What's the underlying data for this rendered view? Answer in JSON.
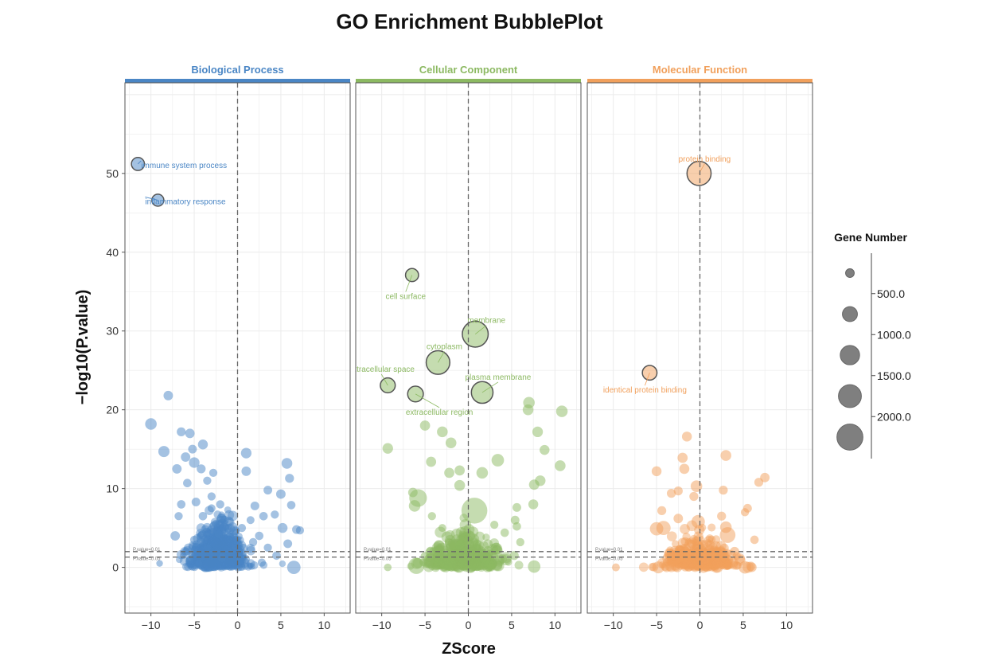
{
  "chart_data": {
    "type": "scatter",
    "title": "GO Enrichment BubblePlot",
    "xlabel": "ZScore",
    "ylabel": "−log10(P.value)",
    "xlim": [
      -13,
      13
    ],
    "ylim": [
      -5.8,
      61.5
    ],
    "x_ticks": [
      -10,
      -5,
      0,
      5,
      10
    ],
    "x_tick_labels": [
      "−10",
      "−5",
      "0",
      "5",
      "10"
    ],
    "y_ticks": [
      0,
      10,
      20,
      30,
      40,
      50
    ],
    "y_tick_labels": [
      "0",
      "10",
      "20",
      "30",
      "40",
      "50"
    ],
    "grid": true,
    "thresholds": {
      "lines": [
        1.3,
        2.0
      ],
      "labels": [
        "P.value=0.05",
        "P.value=0.01"
      ]
    },
    "zscore_zero_line": 0,
    "legend": {
      "title": "Gene Number",
      "position": "right",
      "labels": [
        "500.0",
        "1000.0",
        "1500.0",
        "2000.0"
      ],
      "size_values": [
        250,
        750,
        1250,
        1750,
        2250
      ]
    },
    "panels": [
      {
        "name": "Biological Process",
        "color": "#4a86c5",
        "annotated": [
          {
            "label": "immune system process",
            "x": -11.5,
            "y": 51.2,
            "size": 380
          },
          {
            "label": "inflammatory response",
            "x": -9.2,
            "y": 46.6,
            "size": 320
          }
        ],
        "points": [
          [
            -8,
            21.8,
            200
          ],
          [
            -10,
            18.2,
            300
          ],
          [
            -8.5,
            14.7,
            280
          ],
          [
            -6.5,
            17.2,
            180
          ],
          [
            -5.5,
            17.0,
            200
          ],
          [
            -4,
            15.6,
            220
          ],
          [
            -6,
            14.0,
            200
          ],
          [
            -5,
            13.3,
            250
          ],
          [
            -4.2,
            12.5,
            180
          ],
          [
            -7,
            12.5,
            200
          ],
          [
            -5.8,
            10.7,
            160
          ],
          [
            -3.5,
            11.0,
            150
          ],
          [
            -6.5,
            8.0,
            160
          ],
          [
            -4.8,
            8.3,
            170
          ],
          [
            -3,
            9.0,
            150
          ],
          [
            -2,
            8.0,
            150
          ],
          [
            -7.2,
            4.0,
            200
          ],
          [
            -9,
            0.5,
            100
          ],
          [
            -5.5,
            1.0,
            130
          ],
          [
            1,
            14.5,
            250
          ],
          [
            1,
            12.2,
            200
          ],
          [
            5.7,
            13.2,
            260
          ],
          [
            6,
            11.3,
            180
          ],
          [
            3.5,
            9.8,
            170
          ],
          [
            5,
            9.3,
            200
          ],
          [
            2,
            7.8,
            170
          ],
          [
            6.2,
            7.9,
            160
          ],
          [
            3,
            6.5,
            160
          ],
          [
            4.3,
            6.7,
            150
          ],
          [
            5.2,
            5.0,
            220
          ],
          [
            6.8,
            4.8,
            170
          ],
          [
            7.2,
            4.7,
            150
          ],
          [
            5.8,
            3.0,
            170
          ],
          [
            6.5,
            0.0,
            400
          ],
          [
            1.5,
            6.0,
            140
          ],
          [
            -1.5,
            6.0,
            160
          ],
          [
            0.5,
            5.0,
            150
          ],
          [
            2.5,
            4.0,
            160
          ],
          [
            -4,
            6.5,
            160
          ],
          [
            -3,
            7.5,
            140
          ],
          [
            -5,
            3.5,
            150
          ],
          [
            -2.5,
            5.5,
            150
          ],
          [
            3.5,
            2.5,
            150
          ],
          [
            4.5,
            1.5,
            160
          ],
          [
            -6,
            2.0,
            140
          ],
          [
            -3.5,
            2.5,
            140
          ],
          [
            -1.8,
            1.2,
            160
          ],
          [
            0.2,
            0.8,
            170
          ],
          [
            1.8,
            3.2,
            150
          ],
          [
            -4.5,
            0.5,
            150
          ],
          [
            2.8,
            0.6,
            150
          ],
          [
            -6.8,
            6.5,
            150
          ],
          [
            -5.2,
            15.0,
            170
          ],
          [
            -2.8,
            12.0,
            150
          ],
          [
            -2.2,
            4.2,
            150
          ]
        ],
        "cloud": {
          "seed": 11,
          "count": 620,
          "mean_x": -2.2,
          "sd_x": 1.6,
          "max_y": 9,
          "size_min": 90,
          "size_max": 240
        }
      },
      {
        "name": "Cellular Component",
        "color": "#8cb962",
        "annotated": [
          {
            "label": "cell surface",
            "x": -6.5,
            "y": 37.1,
            "size": 380
          },
          {
            "label": "membrane",
            "x": 0.8,
            "y": 29.6,
            "size": 1500
          },
          {
            "label": "cytoplasm",
            "x": -3.5,
            "y": 26.0,
            "size": 1250
          },
          {
            "label": "extracellular space",
            "x": -9.3,
            "y": 23.1,
            "size": 500
          },
          {
            "label": "plasma membrane",
            "x": 1.6,
            "y": 22.2,
            "size": 1050
          },
          {
            "label": "extracellular region",
            "x": -6.1,
            "y": 22.0,
            "size": 550
          }
        ],
        "points": [
          [
            7,
            20.9,
            300
          ],
          [
            10.8,
            19.8,
            300
          ],
          [
            6.9,
            20.0,
            260
          ],
          [
            8,
            17.2,
            250
          ],
          [
            -5,
            18.0,
            230
          ],
          [
            -3,
            17.2,
            260
          ],
          [
            -2,
            15.8,
            260
          ],
          [
            -9.3,
            15.1,
            250
          ],
          [
            8.8,
            14.9,
            220
          ],
          [
            3.4,
            13.6,
            350
          ],
          [
            -4.3,
            13.4,
            230
          ],
          [
            10.6,
            12.9,
            260
          ],
          [
            -2.2,
            12.0,
            230
          ],
          [
            1.6,
            12.0,
            300
          ],
          [
            -1,
            12.3,
            230
          ],
          [
            8.3,
            11.0,
            250
          ],
          [
            -6.4,
            9.5,
            200
          ],
          [
            -1,
            10.4,
            260
          ],
          [
            7.6,
            10.5,
            240
          ],
          [
            -6.2,
            7.8,
            300
          ],
          [
            -5.8,
            8.8,
            700
          ],
          [
            0.7,
            7.2,
            1500
          ],
          [
            7.5,
            8.0,
            220
          ],
          [
            5.6,
            7.6,
            170
          ],
          [
            5.4,
            6.0,
            170
          ],
          [
            5.6,
            5.2,
            160
          ],
          [
            -3,
            5.0,
            140
          ],
          [
            -4.2,
            6.5,
            150
          ],
          [
            3.2,
            2.5,
            220
          ],
          [
            -6,
            0.2,
            600
          ],
          [
            7.6,
            0.1,
            350
          ],
          [
            -9.3,
            0.0,
            130
          ],
          [
            2.5,
            0.3,
            220
          ],
          [
            -2.3,
            0.5,
            500
          ],
          [
            5.3,
            1.5,
            180
          ],
          [
            -4,
            2.0,
            180
          ],
          [
            1,
            3.0,
            170
          ],
          [
            -1,
            2.8,
            180
          ],
          [
            3,
            5.4,
            150
          ],
          [
            4.2,
            4.4,
            160
          ],
          [
            6,
            3.2,
            150
          ],
          [
            -5,
            1.4,
            170
          ],
          [
            0,
            1.5,
            180
          ],
          [
            2,
            1.0,
            190
          ],
          [
            -3.5,
            0.8,
            200
          ]
        ],
        "cloud": {
          "seed": 29,
          "count": 340,
          "mean_x": -0.6,
          "sd_x": 2.0,
          "max_y": 7,
          "size_min": 110,
          "size_max": 320
        }
      },
      {
        "name": "Molecular Function",
        "color": "#f1a05c",
        "annotated": [
          {
            "label": "protein binding",
            "x": -0.1,
            "y": 50.0,
            "size": 1300
          },
          {
            "label": "identical protein binding",
            "x": -5.8,
            "y": 24.7,
            "size": 480
          }
        ],
        "points": [
          [
            -1.5,
            16.6,
            220
          ],
          [
            3,
            14.2,
            260
          ],
          [
            -2,
            13.9,
            230
          ],
          [
            -1.8,
            12.5,
            230
          ],
          [
            -5,
            12.2,
            220
          ],
          [
            7.5,
            11.4,
            200
          ],
          [
            6.8,
            10.8,
            180
          ],
          [
            -0.4,
            10.3,
            300
          ],
          [
            -2.5,
            9.7,
            180
          ],
          [
            2.7,
            9.8,
            180
          ],
          [
            -3.3,
            9.4,
            180
          ],
          [
            -0.7,
            9.0,
            180
          ],
          [
            5.5,
            7.5,
            170
          ],
          [
            5.2,
            7.0,
            150
          ],
          [
            -4.4,
            7.2,
            180
          ],
          [
            -5,
            4.9,
            400
          ],
          [
            -4.2,
            5.0,
            450
          ],
          [
            -0.2,
            5.8,
            400
          ],
          [
            3.2,
            4.1,
            550
          ],
          [
            3,
            5.1,
            300
          ],
          [
            -9.7,
            0.0,
            140
          ],
          [
            -4.8,
            0.0,
            320
          ],
          [
            5.2,
            0.0,
            350
          ],
          [
            6,
            0.0,
            200
          ],
          [
            6.3,
            3.5,
            160
          ],
          [
            2.5,
            6.5,
            180
          ],
          [
            -2.5,
            6.2,
            200
          ],
          [
            1.5,
            2.5,
            220
          ],
          [
            -3,
            1.5,
            200
          ],
          [
            0.5,
            1.0,
            260
          ],
          [
            4,
            2.0,
            200
          ],
          [
            -1.5,
            0.3,
            220
          ],
          [
            2,
            0.5,
            240
          ]
        ],
        "cloud": {
          "seed": 47,
          "count": 300,
          "mean_x": -0.2,
          "sd_x": 1.9,
          "max_y": 6.5,
          "size_min": 100,
          "size_max": 280
        }
      }
    ]
  }
}
